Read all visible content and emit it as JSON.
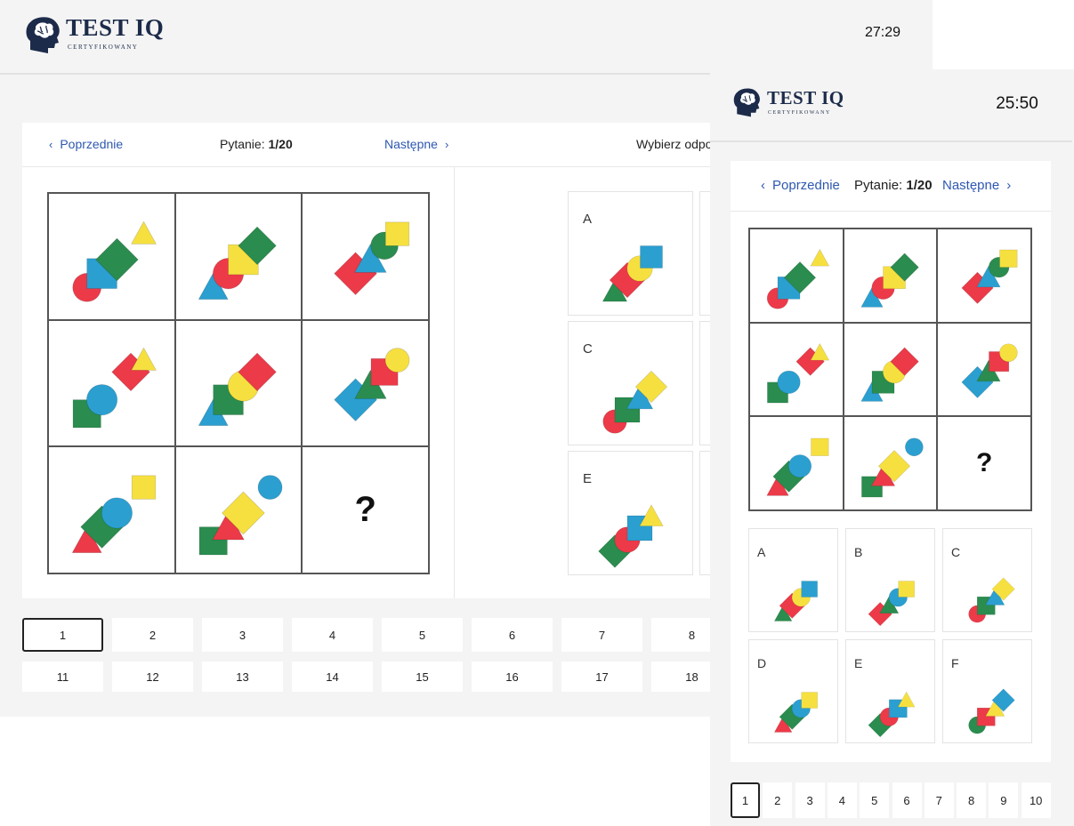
{
  "app": {
    "logo_title": "TEST IQ",
    "logo_subtitle": "CERTYFIKOWANY",
    "timer_desktop": "27:29",
    "timer_mobile": "25:50"
  },
  "nav": {
    "prev_label": "Poprzednie",
    "next_label": "Następne",
    "question_prefix": "Pytanie:",
    "question_value": "1/20",
    "prompt_partial": "Wybierz odpo"
  },
  "puzzle": {
    "missing_symbol": "?"
  },
  "options": {
    "labels": [
      "A",
      "B",
      "C",
      "D",
      "E",
      "F"
    ]
  },
  "pagination": {
    "desktop_row1": [
      "1",
      "2",
      "3",
      "4",
      "5",
      "6",
      "7",
      "8"
    ],
    "desktop_row2": [
      "11",
      "12",
      "13",
      "14",
      "15",
      "16",
      "17",
      "18"
    ],
    "mobile_row": [
      "1",
      "2",
      "3",
      "4",
      "5",
      "6",
      "7",
      "8",
      "9",
      "10"
    ],
    "active": "1"
  },
  "colors": {
    "red": "#ec3a48",
    "green": "#2a8c4e",
    "blue": "#2b9fd0",
    "yellow": "#f6e040",
    "link": "#2f58b0",
    "logo": "#1c2b4a"
  },
  "icons": {
    "logo": "brain-head-icon",
    "prev": "chevron-left-icon",
    "next": "chevron-right-icon"
  }
}
